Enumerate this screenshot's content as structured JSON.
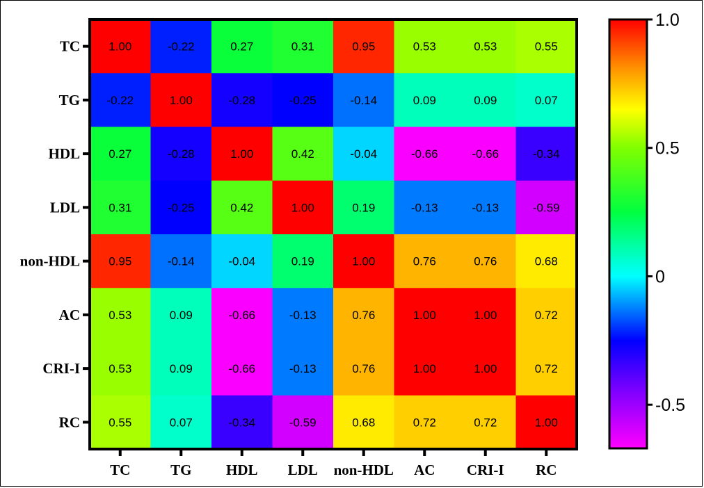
{
  "chart_data": {
    "type": "heatmap",
    "rows": [
      "TC",
      "TG",
      "HDL",
      "LDL",
      "non-HDL",
      "AC",
      "CRI-I",
      "RC"
    ],
    "columns": [
      "TC",
      "TG",
      "HDL",
      "LDL",
      "non-HDL",
      "AC",
      "CRI-I",
      "RC"
    ],
    "values": [
      [
        1.0,
        -0.22,
        0.27,
        0.31,
        0.95,
        0.53,
        0.53,
        0.55
      ],
      [
        -0.22,
        1.0,
        -0.28,
        -0.25,
        -0.14,
        0.09,
        0.09,
        0.07
      ],
      [
        0.27,
        -0.28,
        1.0,
        0.42,
        -0.04,
        -0.66,
        -0.66,
        -0.34
      ],
      [
        0.31,
        -0.25,
        0.42,
        1.0,
        0.19,
        -0.13,
        -0.13,
        -0.59
      ],
      [
        0.95,
        -0.14,
        -0.04,
        0.19,
        1.0,
        0.76,
        0.76,
        0.68
      ],
      [
        0.53,
        0.09,
        -0.66,
        -0.13,
        0.76,
        1.0,
        1.0,
        0.72
      ],
      [
        0.53,
        0.09,
        -0.66,
        -0.13,
        0.76,
        1.0,
        1.0,
        0.72
      ],
      [
        0.55,
        0.07,
        -0.34,
        -0.59,
        0.68,
        0.72,
        0.72,
        1.0
      ]
    ],
    "value_format": "2 decimals",
    "colorbar": {
      "range": [
        -0.67,
        1.0
      ],
      "ticks": [
        1.0,
        0.5,
        0,
        -0.5
      ],
      "tick_labels": [
        "1.0",
        "0.5",
        "0",
        "-0.5"
      ],
      "colormap": [
        {
          "value": -0.67,
          "color": "#ff00ff"
        },
        {
          "value": -0.45,
          "color": "#8000ff"
        },
        {
          "value": -0.25,
          "color": "#0000ff"
        },
        {
          "value": 0.0,
          "color": "#00ffff"
        },
        {
          "value": 0.25,
          "color": "#00ff40"
        },
        {
          "value": 0.5,
          "color": "#80ff00"
        },
        {
          "value": 0.65,
          "color": "#ffff00"
        },
        {
          "value": 0.8,
          "color": "#ff9900"
        },
        {
          "value": 1.0,
          "color": "#ff0000"
        }
      ]
    },
    "title": "",
    "grid": false,
    "legend": "colorbar right"
  }
}
